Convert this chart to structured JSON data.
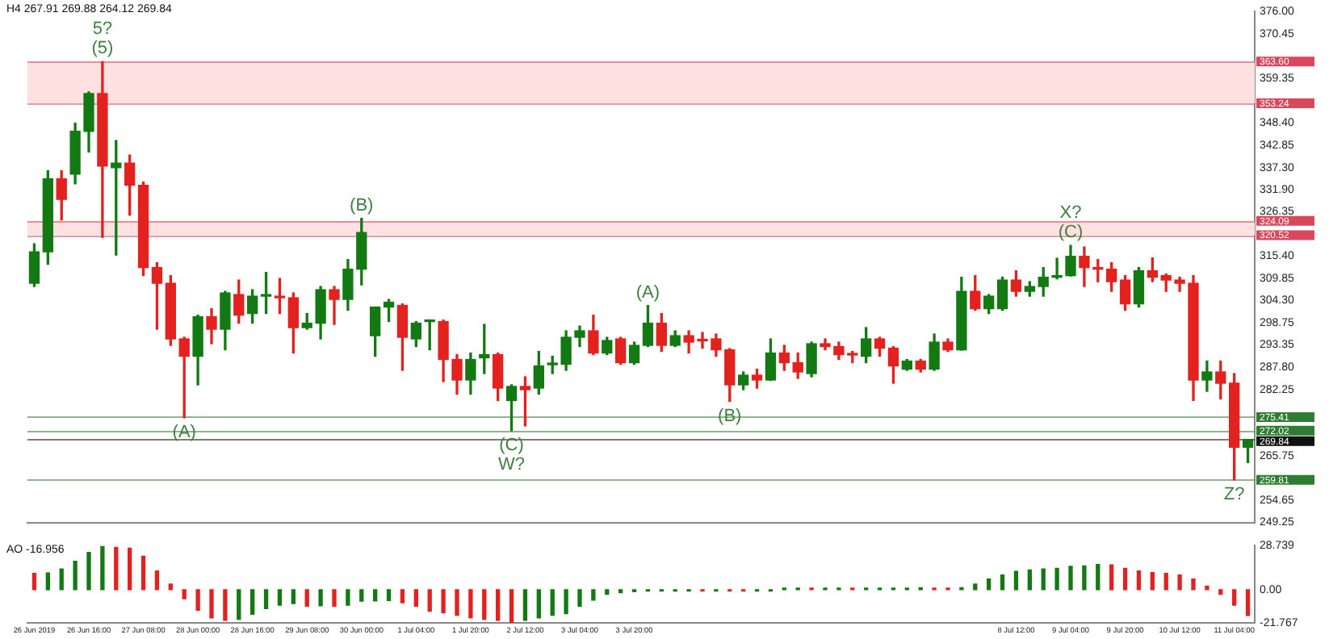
{
  "chart_data": [
    {
      "type": "candlestick",
      "title": "H4 267.91 269.88 264.12 269.84",
      "tick_labels": "y",
      "categories": [
        "26 Jun 2019",
        null,
        null,
        null,
        "26 Jun 16:00",
        null,
        null,
        null,
        "27 Jun 08:00",
        null,
        null,
        null,
        "28 Jun 00:00",
        null,
        null,
        null,
        "28 Jun 16:00",
        null,
        null,
        null,
        "29 Jun 08:00",
        null,
        null,
        null,
        "30 Jun 00:00",
        null,
        null,
        null,
        "1 Jul 04:00",
        null,
        null,
        null,
        "1 Jul 20:00",
        null,
        null,
        null,
        "2 Jul 12:00",
        null,
        null,
        null,
        "3 Jul 04:00",
        null,
        null,
        null,
        "3 Jul 20:00",
        null,
        null,
        null,
        null,
        null,
        null,
        null,
        null,
        null,
        null,
        null,
        null,
        null,
        null,
        null,
        null,
        null,
        null,
        null,
        null,
        null,
        null,
        null,
        null,
        null,
        null,
        null,
        "8 Jul 12:00",
        null,
        null,
        null,
        "9 Jul 04:00",
        null,
        null,
        null,
        "9 Jul 20:00",
        null,
        null,
        null,
        "10 Jul 12:00",
        null,
        null,
        null,
        "11 Jul 04:00",
        null
      ],
      "ohlc": [
        [
          308.6,
          318.4,
          307.8,
          316.4
        ],
        [
          316.4,
          336.5,
          313.3,
          334.5
        ],
        [
          334.5,
          336.5,
          324.3,
          329.4
        ],
        [
          335.7,
          348.3,
          333.3,
          346.3
        ],
        [
          346.3,
          356.1,
          341.2,
          355.7
        ],
        [
          355.7,
          363.6,
          320.0,
          337.7
        ],
        [
          337.3,
          344.0,
          315.6,
          338.4
        ],
        [
          338.4,
          340.4,
          325.5,
          332.9
        ],
        [
          332.9,
          333.7,
          310.5,
          312.5
        ],
        [
          312.5,
          313.7,
          297.2,
          308.6
        ],
        [
          308.6,
          310.5,
          293.2,
          294.8
        ],
        [
          294.8,
          295.2,
          275.2,
          290.5
        ],
        [
          290.5,
          300.7,
          283.4,
          300.3
        ],
        [
          300.3,
          302.3,
          293.6,
          297.2
        ],
        [
          297.2,
          306.6,
          292.1,
          306.2
        ],
        [
          305.8,
          309.4,
          298.7,
          300.7
        ],
        [
          301.1,
          307.0,
          298.7,
          305.4
        ],
        [
          305.4,
          311.3,
          301.1,
          305.5
        ],
        [
          305.4,
          309.8,
          301.1,
          305.0
        ],
        [
          305.0,
          306.2,
          291.3,
          297.6
        ],
        [
          297.6,
          301.1,
          297.2,
          298.7
        ],
        [
          298.7,
          307.8,
          294.8,
          307.0
        ],
        [
          307.0,
          307.8,
          298.4,
          304.6
        ],
        [
          304.6,
          314.5,
          301.9,
          312.1
        ],
        [
          312.1,
          324.7,
          308.2,
          321.2
        ],
        [
          295.6,
          302.7,
          290.5,
          302.7
        ],
        [
          302.7,
          304.6,
          299.1,
          303.9
        ],
        [
          303.1,
          303.5,
          287.0,
          295.2
        ],
        [
          294.8,
          299.1,
          292.9,
          298.7
        ],
        [
          299.1,
          299.5,
          292.1,
          299.2
        ],
        [
          299.1,
          299.5,
          284.2,
          289.7
        ],
        [
          289.7,
          290.9,
          281.1,
          284.6
        ],
        [
          284.6,
          291.3,
          281.1,
          289.7
        ],
        [
          290.1,
          298.4,
          286.2,
          290.9
        ],
        [
          290.9,
          291.3,
          279.5,
          282.6
        ],
        [
          279.5,
          283.4,
          272.0,
          283.0
        ],
        [
          283.0,
          285.4,
          273.2,
          282.2
        ],
        [
          282.6,
          291.7,
          281.1,
          288.1
        ],
        [
          288.4,
          290.5,
          286.2,
          288.6
        ],
        [
          288.5,
          296.8,
          287.0,
          295.2
        ],
        [
          295.2,
          298.0,
          292.9,
          296.8
        ],
        [
          296.8,
          300.7,
          290.9,
          291.3
        ],
        [
          291.3,
          295.2,
          290.9,
          294.4
        ],
        [
          294.8,
          295.2,
          288.5,
          288.9
        ],
        [
          288.9,
          294.0,
          288.5,
          293.2
        ],
        [
          293.2,
          303.1,
          292.9,
          298.7
        ],
        [
          298.7,
          301.1,
          291.7,
          293.2
        ],
        [
          293.2,
          296.8,
          292.9,
          295.6
        ],
        [
          295.6,
          296.8,
          291.3,
          294.0
        ],
        [
          294.4,
          296.4,
          292.5,
          294.3
        ],
        [
          294.8,
          296.0,
          290.5,
          292.1
        ],
        [
          292.1,
          292.4,
          279.3,
          283.4
        ],
        [
          283.4,
          286.6,
          282.2,
          285.8
        ],
        [
          285.8,
          287.3,
          282.6,
          284.6
        ],
        [
          284.6,
          294.8,
          284.5,
          291.3
        ],
        [
          291.3,
          293.2,
          287.0,
          288.9
        ],
        [
          288.9,
          291.3,
          285.0,
          286.6
        ],
        [
          286.2,
          294.0,
          285.4,
          293.6
        ],
        [
          293.6,
          294.8,
          292.1,
          292.9
        ],
        [
          292.9,
          294.0,
          289.7,
          290.9
        ],
        [
          290.9,
          291.7,
          288.9,
          290.8
        ],
        [
          290.5,
          297.6,
          288.9,
          294.8
        ],
        [
          294.8,
          295.2,
          290.5,
          292.5
        ],
        [
          292.5,
          292.9,
          283.8,
          288.1
        ],
        [
          287.3,
          289.7,
          287.0,
          289.3
        ],
        [
          289.3,
          289.7,
          286.6,
          287.3
        ],
        [
          287.3,
          296.0,
          287.0,
          294.0
        ],
        [
          294.0,
          294.8,
          291.7,
          292.1
        ],
        [
          292.1,
          310.1,
          292.0,
          306.6
        ],
        [
          306.6,
          310.5,
          301.9,
          302.3
        ],
        [
          302.3,
          305.8,
          301.1,
          305.4
        ],
        [
          302.3,
          310.1,
          301.9,
          309.4
        ],
        [
          309.4,
          311.7,
          305.4,
          306.6
        ],
        [
          306.6,
          309.0,
          305.4,
          307.8
        ],
        [
          307.8,
          312.5,
          305.4,
          310.1
        ],
        [
          310.1,
          314.8,
          309.7,
          310.5
        ],
        [
          310.5,
          318.0,
          310.4,
          315.3
        ],
        [
          315.3,
          317.6,
          307.8,
          312.5
        ],
        [
          312.5,
          314.5,
          309.0,
          312.1
        ],
        [
          312.1,
          313.7,
          306.6,
          309.0
        ],
        [
          309.4,
          310.5,
          301.9,
          303.5
        ],
        [
          303.5,
          312.5,
          302.7,
          311.7
        ],
        [
          311.7,
          314.9,
          309.0,
          310.1
        ],
        [
          310.5,
          310.9,
          306.6,
          309.4
        ],
        [
          309.4,
          310.1,
          306.6,
          308.6
        ],
        [
          308.6,
          310.5,
          279.5,
          284.6
        ],
        [
          284.6,
          289.3,
          281.8,
          286.6
        ],
        [
          286.6,
          289.3,
          279.9,
          283.8
        ],
        [
          283.8,
          286.2,
          259.81,
          267.91
        ],
        [
          267.91,
          269.88,
          264.12,
          269.84
        ]
      ],
      "colors": [
        "#137a13",
        "#137a13",
        "#e3211e",
        "#137a13",
        "#137a13",
        "#e3211e",
        "#137a13",
        "#e3211e",
        "#e3211e",
        "#e3211e",
        "#e3211e",
        "#e3211e",
        "#137a13",
        "#e3211e",
        "#137a13",
        "#e3211e",
        "#137a13",
        "#137a13",
        "#e3211e",
        "#e3211e",
        "#137a13",
        "#137a13",
        "#e3211e",
        "#137a13",
        "#137a13",
        "#137a13",
        "#137a13",
        "#e3211e",
        "#137a13",
        "#137a13",
        "#e3211e",
        "#e3211e",
        "#137a13",
        "#137a13",
        "#e3211e",
        "#137a13",
        "#e3211e",
        "#137a13",
        "#137a13",
        "#137a13",
        "#137a13",
        "#e3211e",
        "#137a13",
        "#e3211e",
        "#137a13",
        "#137a13",
        "#e3211e",
        "#137a13",
        "#e3211e",
        "#e3211e",
        "#e3211e",
        "#e3211e",
        "#137a13",
        "#e3211e",
        "#137a13",
        "#e3211e",
        "#e3211e",
        "#137a13",
        "#e3211e",
        "#e3211e",
        "#e3211e",
        "#137a13",
        "#e3211e",
        "#e3211e",
        "#137a13",
        "#e3211e",
        "#137a13",
        "#e3211e",
        "#137a13",
        "#e3211e",
        "#137a13",
        "#137a13",
        "#e3211e",
        "#137a13",
        "#137a13",
        "#137a13",
        "#137a13",
        "#e3211e",
        "#e3211e",
        "#e3211e",
        "#e3211e",
        "#137a13",
        "#e3211e",
        "#e3211e",
        "#e3211e",
        "#e3211e",
        "#137a13",
        "#e3211e",
        "#e3211e",
        "#137a13"
      ],
      "ylim": [
        249.25,
        376
      ],
      "yticks": [
        {
          "value": 376,
          "label": "376.00"
        },
        370.45,
        359.35,
        {
          "value": 348.4,
          "label": "348.40"
        },
        342.85,
        {
          "value": 337.3,
          "label": "337.30"
        },
        {
          "value": 331.9,
          "label": "331.90"
        },
        326.35,
        {
          "value": 315.4,
          "label": "315.40"
        },
        309.85,
        {
          "value": 304.3,
          "label": "304.30"
        },
        298.75,
        293.35,
        {
          "value": 287.8,
          "label": "287.80"
        },
        282.25,
        265.75,
        254.65,
        249.25
      ],
      "bands": [
        {
          "axis": "y",
          "from": 353.24,
          "to": 363.6,
          "color": "#ffe1e1"
        },
        {
          "axis": "y",
          "from": 320.52,
          "to": 324.09,
          "color": "#ffe1e1"
        }
      ],
      "ref_lines": [
        {
          "axis": "y",
          "value": 363.6,
          "label": "363.60",
          "color": "#d9475c"
        },
        {
          "axis": "y",
          "value": 353.24,
          "label": "353.24",
          "color": "#d9475c"
        },
        {
          "axis": "y",
          "value": 324.09,
          "label": "324.09",
          "color": "#d9475c"
        },
        {
          "axis": "y",
          "value": 320.52,
          "label": "320.52",
          "color": "#d9475c"
        },
        {
          "axis": "y",
          "value": 275.41,
          "label": "275.41",
          "color": "#2f7d32"
        },
        {
          "axis": "y",
          "value": 272.02,
          "label": "272.02",
          "color": "#2f7d32"
        },
        {
          "axis": "y",
          "value": 269.84,
          "label": "269.84",
          "color": "#111111"
        },
        {
          "axis": "y",
          "value": 259.81,
          "label": "259.81",
          "color": "#2f7d32"
        }
      ],
      "annotations": [
        {
          "text": "(5)",
          "y": 363.6
        },
        {
          "text": "5?",
          "y": 363.6
        },
        {
          "text": "(A)",
          "y": 275.2
        },
        {
          "text": "(B)",
          "x": "30 Jun 00:00",
          "y": 324.7
        },
        {
          "text": "(C)",
          "y": 272.0
        },
        {
          "text": "W?",
          "y": 272.0
        },
        {
          "text": "(A)",
          "y": 303.1
        },
        {
          "text": "(B)",
          "y": 279.3
        },
        {
          "text": "(C)",
          "x": "9 Jul 04:00",
          "y": 318.0
        },
        {
          "text": "X?",
          "x": "9 Jul 04:00",
          "y": 318.0
        },
        {
          "text": "Z?",
          "x": "11 Jul 04:00",
          "y": 259.81
        }
      ]
    },
    {
      "type": "bar",
      "title": "AO -16.956",
      "categories": [
        "26 Jun 2019",
        null,
        null,
        null,
        "26 Jun 16:00",
        null,
        null,
        null,
        "27 Jun 08:00",
        null,
        null,
        null,
        "28 Jun 00:00",
        null,
        null,
        null,
        "28 Jun 16:00",
        null,
        null,
        null,
        "29 Jun 08:00",
        null,
        null,
        null,
        "30 Jun 00:00",
        null,
        null,
        null,
        "1 Jul 04:00",
        null,
        null,
        null,
        "1 Jul 20:00",
        null,
        null,
        null,
        "2 Jul 12:00",
        null,
        null,
        null,
        "3 Jul 04:00",
        null,
        null,
        null,
        "3 Jul 20:00",
        null,
        null,
        null,
        null,
        null,
        null,
        null,
        null,
        null,
        null,
        null,
        null,
        null,
        null,
        null,
        null,
        null,
        null,
        null,
        null,
        null,
        null,
        null,
        null,
        null,
        null,
        null,
        "8 Jul 12:00",
        null,
        null,
        null,
        "9 Jul 04:00",
        null,
        null,
        null,
        "9 Jul 20:00",
        null,
        null,
        null,
        "10 Jul 12:00",
        null,
        null,
        null,
        "11 Jul 04:00",
        null
      ],
      "values": [
        10.6,
        10.9,
        13.5,
        18.5,
        24.4,
        28.4,
        27.7,
        27.1,
        21.8,
        12.2,
        3.6,
        -5.9,
        -13.5,
        -18.5,
        -20.1,
        -19.5,
        -16.2,
        -12.5,
        -10.2,
        -9.2,
        -10.9,
        -10.6,
        -10.9,
        -10.2,
        -7.6,
        -7.4,
        -7.2,
        -8.6,
        -10.9,
        -14.2,
        -15.2,
        -16.8,
        -18.5,
        -19.5,
        -20.1,
        -21.7,
        -20.1,
        -18.5,
        -16.8,
        -15.8,
        -10.9,
        -6.9,
        -3.0,
        -2.0,
        -1.3,
        -1.0,
        -1.0,
        -1.0,
        -1.0,
        -1.0,
        -1.0,
        -1.0,
        -1.0,
        -1.0,
        -1.0,
        1.0,
        1.0,
        1.0,
        1.0,
        1.0,
        1.0,
        1.0,
        1.0,
        1.0,
        1.0,
        1.2,
        1.0,
        1.0,
        1.2,
        3.6,
        6.9,
        9.6,
        11.9,
        12.9,
        13.5,
        13.9,
        15.2,
        15.5,
        16.4,
        16.2,
        13.9,
        12.2,
        11.2,
        10.6,
        9.6,
        6.9,
        2.3,
        -3.0,
        -10.2,
        -16.956
      ],
      "colors": [
        "#e3211e",
        "#137a13",
        "#137a13",
        "#137a13",
        "#137a13",
        "#137a13",
        "#e3211e",
        "#e3211e",
        "#e3211e",
        "#e3211e",
        "#e3211e",
        "#e3211e",
        "#e3211e",
        "#e3211e",
        "#e3211e",
        "#137a13",
        "#137a13",
        "#137a13",
        "#137a13",
        "#137a13",
        "#e3211e",
        "#137a13",
        "#e3211e",
        "#137a13",
        "#137a13",
        "#137a13",
        "#137a13",
        "#e3211e",
        "#e3211e",
        "#e3211e",
        "#e3211e",
        "#e3211e",
        "#e3211e",
        "#e3211e",
        "#e3211e",
        "#e3211e",
        "#137a13",
        "#137a13",
        "#137a13",
        "#137a13",
        "#137a13",
        "#137a13",
        "#137a13",
        "#137a13",
        "#137a13",
        "#137a13",
        "#137a13",
        "#137a13",
        "#137a13",
        "#e3211e",
        "#137a13",
        "#e3211e",
        "#e3211e",
        "#137a13",
        "#137a13",
        "#137a13",
        "#137a13",
        "#e3211e",
        "#137a13",
        "#137a13",
        "#e3211e",
        "#137a13",
        "#137a13",
        "#137a13",
        "#137a13",
        "#137a13",
        "#e3211e",
        "#e3211e",
        "#137a13",
        "#137a13",
        "#137a13",
        "#137a13",
        "#137a13",
        "#137a13",
        "#137a13",
        "#137a13",
        "#137a13",
        "#137a13",
        "#137a13",
        "#e3211e",
        "#e3211e",
        "#e3211e",
        "#e3211e",
        "#e3211e",
        "#e3211e",
        "#e3211e",
        "#e3211e",
        "#e3211e",
        "#e3211e",
        "#e3211e"
      ],
      "ylim": [
        -21.767,
        28.739
      ],
      "yticks": [
        28.739,
        {
          "value": 0,
          "label": "0.00"
        },
        -21.767
      ]
    }
  ]
}
